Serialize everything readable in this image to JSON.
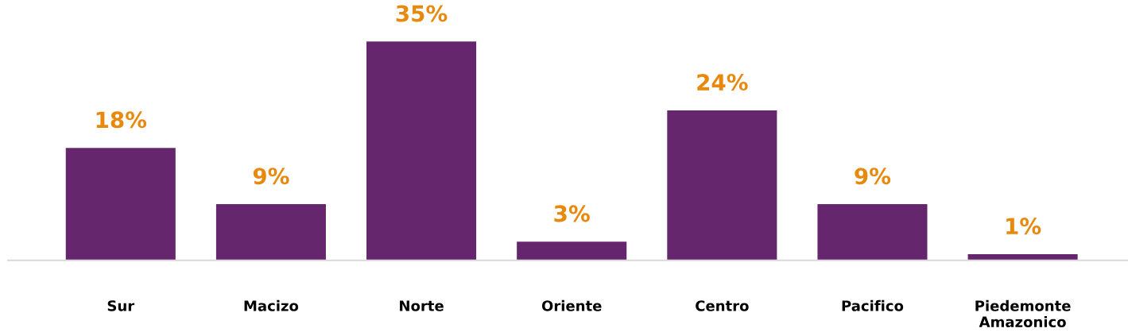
{
  "chart_data": {
    "type": "bar",
    "categories": [
      "Sur",
      "Macizo",
      "Norte",
      "Oriente",
      "Centro",
      "Pacifico",
      "Piedemonte\nAmazonico"
    ],
    "values": [
      18,
      9,
      35,
      3,
      24,
      9,
      1
    ],
    "value_labels": [
      "18%",
      "9%",
      "35%",
      "3%",
      "24%",
      "9%",
      "1%"
    ],
    "color": "#66266e",
    "tick_labels": "x",
    "grid": false
  }
}
